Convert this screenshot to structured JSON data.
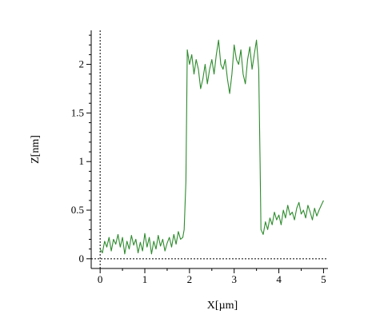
{
  "chart_data": {
    "type": "line",
    "title": "",
    "xlabel": "X[µm]",
    "ylabel": "Z[nm]",
    "xlim": [
      -0.2,
      5.1
    ],
    "ylim": [
      -0.1,
      2.35
    ],
    "xticks": [
      0,
      1,
      2,
      3,
      4,
      5
    ],
    "yticks": [
      0,
      0.5,
      1,
      1.5,
      2
    ],
    "xtick_labels": [
      "0",
      "1",
      "2",
      "3",
      "4",
      "5"
    ],
    "ytick_labels": [
      "0",
      "0.5",
      "1",
      "1.5",
      "2"
    ],
    "reference_lines": {
      "x": 0,
      "y": 0,
      "style": "dotted"
    },
    "grid": false,
    "legend": false,
    "line_color": "#2e8b2e",
    "series": [
      {
        "x": [
          0.0,
          0.05,
          0.1,
          0.15,
          0.2,
          0.25,
          0.3,
          0.35,
          0.4,
          0.45,
          0.5,
          0.55,
          0.6,
          0.65,
          0.7,
          0.75,
          0.8,
          0.85,
          0.9,
          0.95,
          1.0,
          1.05,
          1.1,
          1.15,
          1.2,
          1.25,
          1.3,
          1.35,
          1.4,
          1.45,
          1.5,
          1.55,
          1.6,
          1.65,
          1.7,
          1.75,
          1.8,
          1.85,
          1.88,
          1.92,
          1.95,
          2.0,
          2.05,
          2.1,
          2.15,
          2.2,
          2.25,
          2.3,
          2.35,
          2.4,
          2.45,
          2.5,
          2.55,
          2.6,
          2.65,
          2.7,
          2.75,
          2.8,
          2.85,
          2.9,
          2.95,
          3.0,
          3.05,
          3.1,
          3.15,
          3.2,
          3.25,
          3.3,
          3.35,
          3.4,
          3.45,
          3.5,
          3.55,
          3.58,
          3.6,
          3.65,
          3.7,
          3.75,
          3.8,
          3.85,
          3.9,
          3.95,
          4.0,
          4.05,
          4.1,
          4.15,
          4.2,
          4.25,
          4.3,
          4.35,
          4.4,
          4.45,
          4.5,
          4.55,
          4.6,
          4.65,
          4.7,
          4.75,
          4.8,
          4.85,
          4.9,
          4.95,
          5.0
        ],
        "y": [
          0.1,
          0.06,
          0.18,
          0.12,
          0.22,
          0.08,
          0.2,
          0.15,
          0.25,
          0.12,
          0.22,
          0.05,
          0.18,
          0.1,
          0.24,
          0.14,
          0.2,
          0.06,
          0.17,
          0.08,
          0.26,
          0.12,
          0.22,
          0.05,
          0.18,
          0.1,
          0.24,
          0.13,
          0.2,
          0.08,
          0.16,
          0.22,
          0.12,
          0.25,
          0.15,
          0.28,
          0.2,
          0.22,
          0.3,
          0.8,
          2.15,
          2.0,
          2.1,
          1.9,
          2.05,
          1.95,
          1.75,
          1.85,
          2.0,
          1.8,
          1.95,
          2.05,
          1.9,
          2.1,
          2.25,
          2.0,
          1.95,
          2.05,
          1.85,
          1.7,
          1.9,
          2.2,
          2.05,
          2.0,
          2.15,
          1.9,
          1.8,
          2.05,
          2.18,
          1.95,
          2.1,
          2.25,
          1.95,
          1.0,
          0.3,
          0.25,
          0.38,
          0.3,
          0.42,
          0.35,
          0.48,
          0.4,
          0.45,
          0.35,
          0.5,
          0.42,
          0.55,
          0.45,
          0.48,
          0.4,
          0.52,
          0.58,
          0.46,
          0.5,
          0.42,
          0.55,
          0.48,
          0.4,
          0.52,
          0.44,
          0.5,
          0.55,
          0.6
        ]
      }
    ]
  }
}
